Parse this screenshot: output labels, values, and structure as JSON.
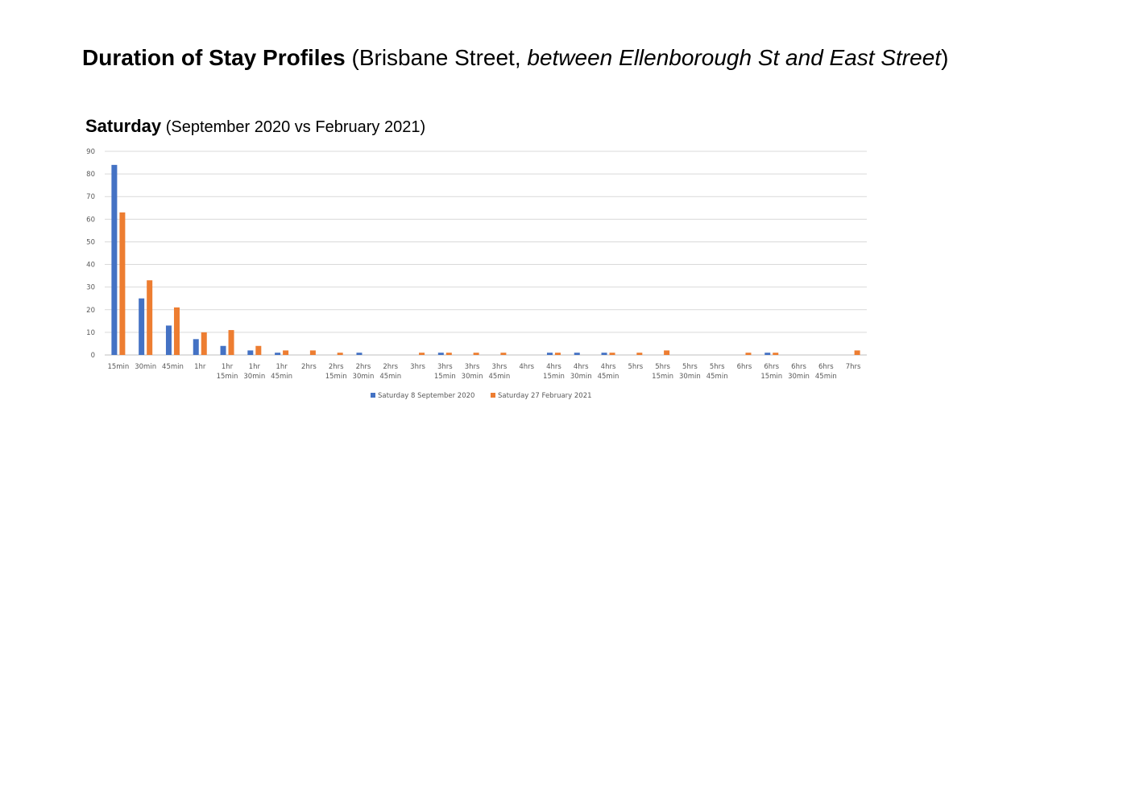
{
  "page": {
    "title_bold": "Duration of Stay Profiles",
    "title_open": " (Brisbane Street, ",
    "title_italic": "between Ellenborough St and East Street",
    "title_close": ")"
  },
  "chart_heading": {
    "bold": "Saturday",
    "rest": " (September 2020 vs February 2021)"
  },
  "chart_data": {
    "type": "bar",
    "title": "Saturday (September 2020 vs February 2021)",
    "xlabel": "",
    "ylabel": "",
    "ylim": [
      0,
      90
    ],
    "yticks": [
      0,
      10,
      20,
      30,
      40,
      50,
      60,
      70,
      80,
      90
    ],
    "grid": true,
    "legend_position": "bottom",
    "categories": [
      [
        "15min"
      ],
      [
        "30min"
      ],
      [
        "45min"
      ],
      [
        "1hr"
      ],
      [
        "1hr",
        "15min"
      ],
      [
        "1hr",
        "30min"
      ],
      [
        "1hr",
        "45min"
      ],
      [
        "2hrs"
      ],
      [
        "2hrs",
        "15min"
      ],
      [
        "2hrs",
        "30min"
      ],
      [
        "2hrs",
        "45min"
      ],
      [
        "3hrs"
      ],
      [
        "3hrs",
        "15min"
      ],
      [
        "3hrs",
        "30min"
      ],
      [
        "3hrs",
        "45min"
      ],
      [
        "4hrs"
      ],
      [
        "4hrs",
        "15min"
      ],
      [
        "4hrs",
        "30min"
      ],
      [
        "4hrs",
        "45min"
      ],
      [
        "5hrs"
      ],
      [
        "5hrs",
        "15min"
      ],
      [
        "5hrs",
        "30min"
      ],
      [
        "5hrs",
        "45min"
      ],
      [
        "6hrs"
      ],
      [
        "6hrs",
        "15min"
      ],
      [
        "6hrs",
        "30min"
      ],
      [
        "6hrs",
        "45min"
      ],
      [
        "7hrs"
      ]
    ],
    "series": [
      {
        "name": "Saturday 8 September 2020",
        "color": "#4472C4",
        "values": [
          84,
          25,
          13,
          7,
          4,
          2,
          1,
          0,
          0,
          1,
          0,
          0,
          1,
          0,
          0,
          0,
          1,
          1,
          1,
          0,
          0,
          0,
          0,
          0,
          1,
          0,
          0,
          0
        ]
      },
      {
        "name": "Saturday 27 February 2021",
        "color": "#ED7D31",
        "values": [
          63,
          33,
          21,
          10,
          11,
          4,
          2,
          2,
          1,
          0,
          0,
          1,
          1,
          1,
          1,
          0,
          1,
          0,
          1,
          1,
          2,
          0,
          0,
          1,
          1,
          0,
          0,
          2
        ]
      }
    ]
  }
}
